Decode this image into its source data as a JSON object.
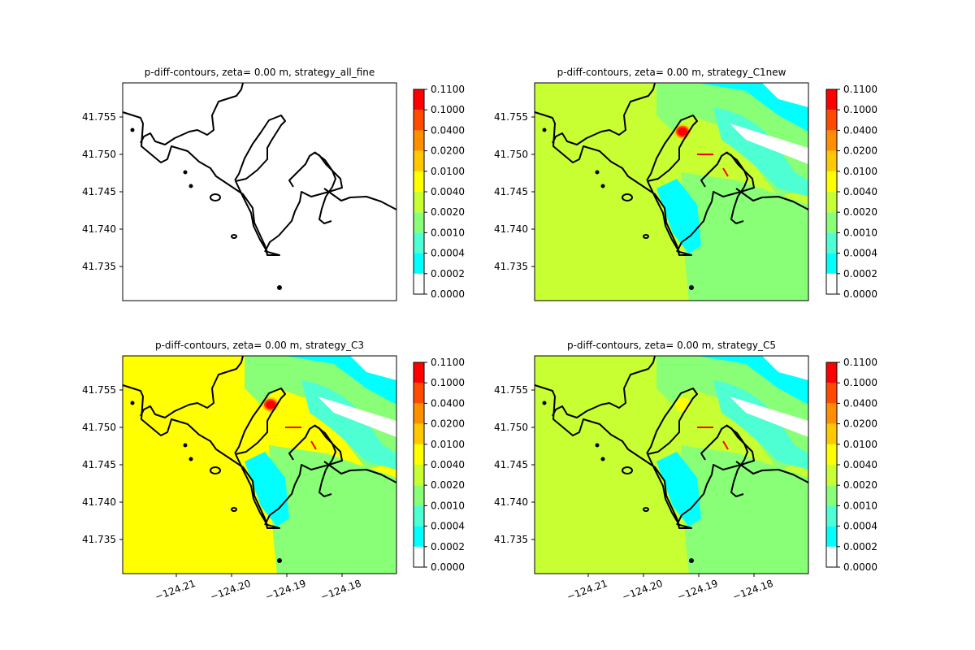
{
  "chart_data": [
    {
      "type": "heatmap",
      "title": "p-diff-contours, zeta= 0.00 m, strategy_all_fine",
      "ytick_labels": [
        "41.755",
        "41.750",
        "41.745",
        "41.740",
        "41.735"
      ],
      "xtick_labels": [],
      "ylim": [
        41.7302,
        41.7596
      ],
      "xlim": [
        -124.2195,
        -124.1721
      ],
      "colorbar": {
        "levels": [
          "0.0000",
          "0.0002",
          "0.0004",
          "0.0010",
          "0.0020",
          "0.0040",
          "0.0100",
          "0.0200",
          "0.0400",
          "0.1000",
          "0.1100"
        ],
        "colors": [
          "#ffffff",
          "#00ffff",
          "#4dffd2",
          "#88ff77",
          "#c8ff33",
          "#ffff00",
          "#ffc800",
          "#ff8f00",
          "#ff4a00",
          "#ff0000"
        ]
      },
      "dominant_level_index": 0,
      "coastline": true
    },
    {
      "type": "heatmap",
      "title": "p-diff-contours, zeta= 0.00 m, strategy_C1new",
      "ytick_labels": [
        "41.755",
        "41.750",
        "41.745",
        "41.740",
        "41.735"
      ],
      "xtick_labels": [],
      "ylim": [
        41.7302,
        41.7596
      ],
      "xlim": [
        -124.2195,
        -124.1721
      ],
      "colorbar": {
        "levels": [
          "0.0000",
          "0.0002",
          "0.0004",
          "0.0010",
          "0.0020",
          "0.0040",
          "0.0100",
          "0.0200",
          "0.0400",
          "0.1000",
          "0.1100"
        ],
        "colors": [
          "#ffffff",
          "#00ffff",
          "#4dffd2",
          "#88ff77",
          "#c8ff33",
          "#ffff00",
          "#ffc800",
          "#ff8f00",
          "#ff4a00",
          "#ff0000"
        ]
      },
      "dominant_level_index": 4,
      "coastline": true
    },
    {
      "type": "heatmap",
      "title": "p-diff-contours, zeta= 0.00 m, strategy_C3",
      "ytick_labels": [
        "41.755",
        "41.750",
        "41.745",
        "41.740",
        "41.735"
      ],
      "xtick_labels": [
        "−124.21",
        "−124.20",
        "−124.19",
        "−124.18"
      ],
      "ylim": [
        41.7302,
        41.7596
      ],
      "xlim": [
        -124.2195,
        -124.1721
      ],
      "colorbar": {
        "levels": [
          "0.0000",
          "0.0002",
          "0.0004",
          "0.0010",
          "0.0020",
          "0.0040",
          "0.0100",
          "0.0200",
          "0.0400",
          "0.1000",
          "0.1100"
        ],
        "colors": [
          "#ffffff",
          "#00ffff",
          "#4dffd2",
          "#88ff77",
          "#c8ff33",
          "#ffff00",
          "#ffc800",
          "#ff8f00",
          "#ff4a00",
          "#ff0000"
        ]
      },
      "dominant_level_index": 5,
      "coastline": true
    },
    {
      "type": "heatmap",
      "title": "p-diff-contours, zeta= 0.00 m, strategy_C5",
      "ytick_labels": [
        "41.755",
        "41.750",
        "41.745",
        "41.740",
        "41.735"
      ],
      "xtick_labels": [
        "−124.21",
        "−124.20",
        "−124.19",
        "−124.18"
      ],
      "ylim": [
        41.7302,
        41.7596
      ],
      "xlim": [
        -124.2195,
        -124.1721
      ],
      "colorbar": {
        "levels": [
          "0.0000",
          "0.0002",
          "0.0004",
          "0.0010",
          "0.0020",
          "0.0040",
          "0.0100",
          "0.0200",
          "0.0400",
          "0.1000",
          "0.1100"
        ],
        "colors": [
          "#ffffff",
          "#00ffff",
          "#4dffd2",
          "#88ff77",
          "#c8ff33",
          "#ffff00",
          "#ffc800",
          "#ff8f00",
          "#ff4a00",
          "#ff0000"
        ]
      },
      "dominant_level_index": 4,
      "coastline": true
    }
  ]
}
